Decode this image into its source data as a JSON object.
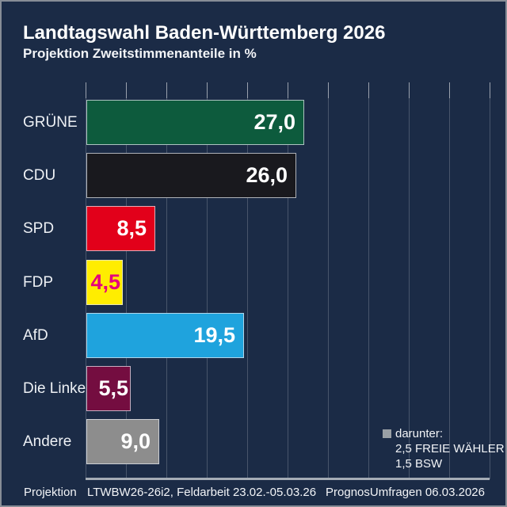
{
  "header": {
    "title": "Landtagswahl Baden-Württemberg 2026",
    "subtitle": "Projektion Zweitstimmenanteile in %"
  },
  "chart_data": {
    "type": "bar",
    "orientation": "horizontal",
    "title": "Landtagswahl Baden-Württemberg 2026",
    "subtitle": "Projektion Zweitstimmenanteile in %",
    "categories": [
      "GRÜNE",
      "CDU",
      "SPD",
      "FDP",
      "AfD",
      "Die Linke",
      "Andere"
    ],
    "values": [
      27.0,
      26.0,
      8.5,
      4.5,
      19.5,
      5.5,
      9.0
    ],
    "value_labels": [
      "27,0",
      "26,0",
      "8,5",
      "4,5",
      "19,5",
      "5,5",
      "9,0"
    ],
    "bar_colors": [
      "#0d5b3d",
      "#19191e",
      "#e2001a",
      "#ffed00",
      "#1fa3dd",
      "#740d40",
      "#8d8d8d"
    ],
    "value_label_colors": [
      "#ffffff",
      "#ffffff",
      "#ffffff",
      "#e5007d",
      "#ffffff",
      "#ffffff",
      "#ffffff"
    ],
    "xlim": [
      0,
      50
    ],
    "grid_step": 5,
    "grid": true,
    "legend": {
      "position": "bottom-right",
      "swatch_color": "#9aa0a5",
      "title": "darunter:",
      "items": [
        "2,5 FREIE WÄHLER",
        "1,5 BSW"
      ]
    }
  },
  "footer": {
    "left": "Projektion",
    "center": "LTWBW26-26i2, Feldarbeit 23.02.-05.03.26",
    "right": "PrognosUmfragen 06.03.2026"
  },
  "colors": {
    "background": "#1b2b46",
    "border": "#878d96",
    "gridline": "rgba(255,255,255,0.20)",
    "grid_tick": "rgba(255,255,255,0.45)",
    "axis_line": "#a5acb5",
    "text": "#ffffff"
  }
}
